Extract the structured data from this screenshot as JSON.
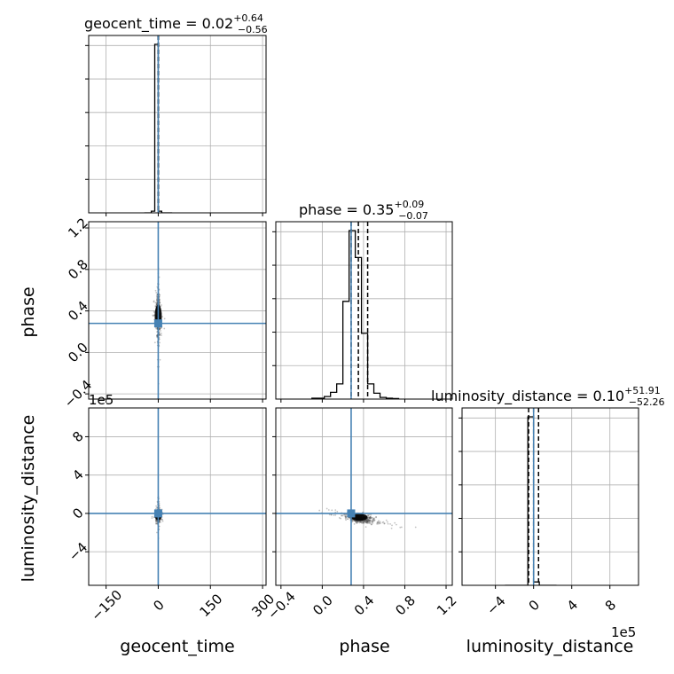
{
  "chart_data": {
    "type": "corner",
    "parameters": [
      "geocent_time",
      "phase",
      "luminosity_distance"
    ],
    "axis_labels": {
      "x": [
        "geocent_time",
        "phase",
        "luminosity_distance"
      ],
      "y": [
        "phase",
        "luminosity_distance"
      ]
    },
    "titles": [
      {
        "prefix": "geocent_time = ",
        "median": "0.02",
        "plus": "+0.64",
        "minus": "−0.56"
      },
      {
        "prefix": "phase = ",
        "median": "0.35",
        "plus": "+0.09",
        "minus": "−0.07"
      },
      {
        "prefix": "luminosity_distance = ",
        "median": "0.10",
        "plus": "+51.91",
        "minus": "−52.26"
      }
    ],
    "sci_notation": {
      "luminosity_distance_axis": "1e5"
    },
    "axes": {
      "geocent_time": {
        "lim": [
          -200,
          310
        ],
        "ticks": [
          -150,
          0,
          150,
          300
        ],
        "tick_labels": [
          "−150",
          "0",
          "150",
          "300"
        ]
      },
      "phase": {
        "lim": [
          -0.45,
          1.26
        ],
        "ticks": [
          -0.4,
          0.0,
          0.4,
          0.8,
          1.2
        ],
        "tick_labels": [
          "−0.4",
          "0.0",
          "0.4",
          "0.8",
          "1.2"
        ]
      },
      "luminosity_distance": {
        "lim": [
          -7.5,
          11.0
        ],
        "ticks": [
          -4,
          0,
          4,
          8
        ],
        "tick_labels": [
          "−4",
          "0",
          "4",
          "8"
        ]
      }
    },
    "injection": {
      "geocent_time": 0,
      "phase": 0.28,
      "luminosity_distance": 0
    },
    "quantiles": {
      "geocent_time": [
        -0.54,
        0.02,
        0.66
      ],
      "phase": [
        0.28,
        0.35,
        0.44
      ],
      "luminosity_distance": [
        -0.5216,
        0.001,
        0.5201
      ]
    },
    "histograms": {
      "geocent_time": {
        "edges": [
          -40,
          -30,
          -20,
          -10,
          0,
          10,
          20,
          30,
          40
        ],
        "counts": [
          0,
          0,
          0.01,
          1.0,
          0.01,
          0,
          0,
          0
        ]
      },
      "phase": {
        "edges": [
          -0.1,
          -0.04,
          0.02,
          0.08,
          0.14,
          0.2,
          0.26,
          0.32,
          0.38,
          0.44,
          0.5,
          0.56,
          0.62,
          0.68,
          0.74
        ],
        "counts": [
          0.005,
          0.005,
          0.015,
          0.04,
          0.09,
          0.58,
          1.0,
          0.84,
          0.39,
          0.09,
          0.035,
          0.01,
          0.005,
          0.003
        ]
      },
      "luminosity_distance": {
        "edges": [
          -3,
          -2.4,
          -1.8,
          -1.2,
          -0.6,
          0,
          0.6,
          1.2,
          1.8,
          2.4
        ],
        "counts": [
          0,
          0,
          0,
          0,
          1.0,
          0.02,
          0,
          0,
          0
        ]
      }
    },
    "grid": true
  }
}
